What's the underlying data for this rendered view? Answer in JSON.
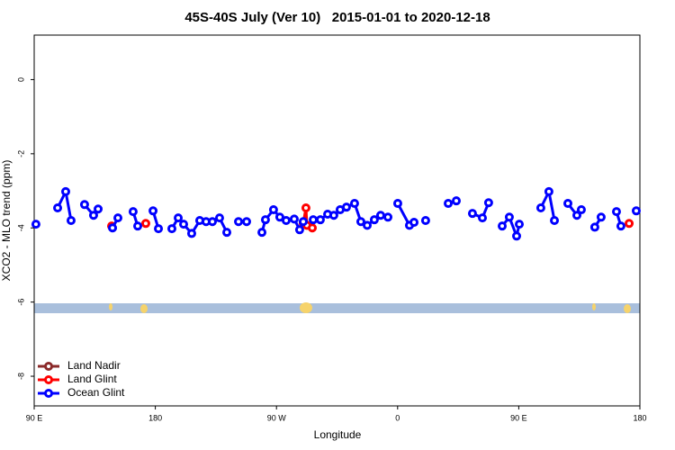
{
  "chart_data": {
    "type": "line",
    "title": "45S-40S July (Ver 10)   2015-01-01 to 2020-12-18",
    "x_label": "Longitude",
    "y_label": "XCO2 - MLO trend (ppm)",
    "xlim": [
      90,
      540
    ],
    "ylim": [
      -8.8,
      1.2
    ],
    "xticks": [
      {
        "value": 90,
        "label": "90 E"
      },
      180,
      {
        "value": 270,
        "label": "90 W"
      },
      {
        "value": 360,
        "label": "0"
      },
      {
        "value": 450,
        "label": "90 E"
      },
      {
        "value": 540,
        "label": "180"
      }
    ],
    "yticks": [
      0,
      -2,
      -4,
      -6,
      -8
    ],
    "legend": "bottom-left",
    "series": [
      {
        "name": "Land Nadir",
        "color": "#8b2a2a",
        "x": [],
        "values": []
      },
      {
        "name": "Land Glint",
        "color": "#ff0000",
        "x": [
          147.5,
          null,
          172.9,
          null,
          289.9,
          291.9,
          292.6,
          296.6,
          null,
          532.0
        ],
        "values": [
          -3.95,
          null,
          -3.88,
          null,
          -3.88,
          -3.46,
          -3.93,
          -4.0,
          null,
          -3.88
        ]
      },
      {
        "name": "Ocean Glint",
        "color": "#0000ff",
        "x": [
          91.3,
          null,
          107.4,
          113.4,
          117.4,
          null,
          127.4,
          134.1,
          137.5,
          null,
          148.2,
          152.2,
          null,
          163.5,
          166.9,
          null,
          178.3,
          182.3,
          null,
          192.3,
          197.0,
          201.0,
          207.0,
          213.0,
          217.7,
          222.4,
          227.7,
          233.1,
          null,
          241.8,
          247.8,
          null,
          259.2,
          261.8,
          267.8,
          272.5,
          277.2,
          283.2,
          287.2,
          289.9,
          null,
          297.3,
          302.6,
          308.0,
          312.6,
          317.3,
          322.0,
          328.0,
          332.7,
          337.4,
          342.7,
          347.4,
          352.8,
          null,
          360.1,
          368.8,
          372.2,
          null,
          380.8,
          null,
          397.6,
          403.6,
          null,
          415.6,
          423.0,
          427.6,
          null,
          437.7,
          443.0,
          448.4,
          450.4,
          null,
          466.4,
          472.4,
          476.5,
          null,
          486.5,
          493.2,
          496.5,
          null,
          506.5,
          511.2,
          null,
          522.6,
          525.9,
          null,
          537.3
        ],
        "values": [
          -3.9,
          null,
          -3.46,
          -3.02,
          -3.8,
          null,
          -3.37,
          -3.66,
          -3.49,
          null,
          -4.0,
          -3.73,
          null,
          -3.56,
          -3.95,
          null,
          -3.54,
          -4.02,
          null,
          -4.02,
          -3.73,
          -3.9,
          -4.15,
          -3.8,
          -3.83,
          -3.83,
          -3.73,
          -4.12,
          null,
          -3.83,
          -3.83,
          null,
          -4.12,
          -3.78,
          -3.51,
          -3.71,
          -3.8,
          -3.76,
          -4.05,
          -3.83,
          null,
          -3.78,
          -3.78,
          -3.63,
          -3.66,
          -3.51,
          -3.44,
          -3.34,
          -3.83,
          -3.93,
          -3.78,
          -3.66,
          -3.71,
          null,
          -3.34,
          -3.93,
          -3.85,
          null,
          -3.8,
          null,
          -3.34,
          -3.27,
          null,
          -3.61,
          -3.73,
          -3.32,
          null,
          -3.95,
          -3.71,
          -4.22,
          -3.9,
          null,
          -3.46,
          -3.02,
          -3.8,
          null,
          -3.34,
          -3.66,
          -3.51,
          null,
          -3.98,
          -3.71,
          null,
          -3.56,
          -3.95,
          null,
          -3.54
        ]
      }
    ]
  }
}
